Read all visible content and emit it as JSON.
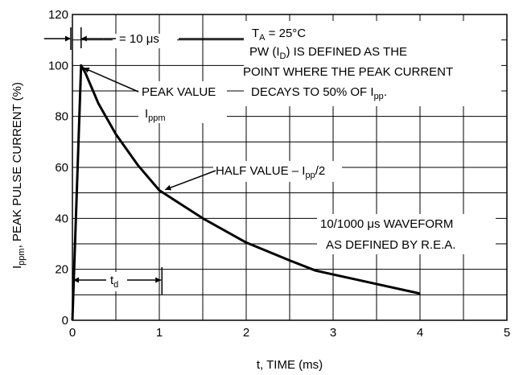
{
  "chart_data": {
    "type": "line",
    "xlabel": "t, TIME (ms)",
    "ylabel": {
      "main": "I",
      "sub": "ppm",
      "rest": ", PEAK PULSE CURRENT (%)"
    },
    "xlim": [
      0,
      5
    ],
    "ylim": [
      0,
      120
    ],
    "x_ticks": [
      0,
      1,
      2,
      3,
      4,
      5
    ],
    "y_ticks": [
      0,
      20,
      40,
      60,
      80,
      100,
      120
    ],
    "x_minor_grid": 0.5,
    "y_minor_grid": 10,
    "grid": true,
    "series": [
      {
        "x": [
          0,
          0.1,
          0.15,
          0.3,
          0.5,
          0.75,
          1.0,
          1.5,
          2.0,
          2.5,
          2.8,
          3.2,
          3.6,
          4.0
        ],
        "y": [
          0,
          100,
          97,
          85,
          73,
          61,
          51,
          40,
          30.5,
          23.5,
          19.5,
          16.5,
          13.5,
          10.5
        ]
      }
    ],
    "annotations": {
      "pulse_width": "= 10 μs",
      "ta_T": "T",
      "ta_sub": "A",
      "ta_rest": " = 25°C",
      "pw_line1_a": "PW (I",
      "pw_line1_sub": "D",
      "pw_line1_b": ") IS DEFINED AS THE",
      "pw_line2": "POINT WHERE THE PEAK CURRENT",
      "pw_line3_a": "DECAYS TO 50% OF I",
      "pw_line3_sub": "pp",
      "pw_line3_b": ".",
      "peak_value": "PEAK VALUE",
      "ippm_main": "I",
      "ippm_sub": "ppm",
      "half_value_a": "HALF VALUE – I",
      "half_value_sub": "pp",
      "half_value_b": "/2",
      "waveform_line1": "10/1000 μs WAVEFORM",
      "waveform_line2": "AS DEFINED BY R.E.A.",
      "td_main": "t",
      "td_sub": "d"
    }
  }
}
